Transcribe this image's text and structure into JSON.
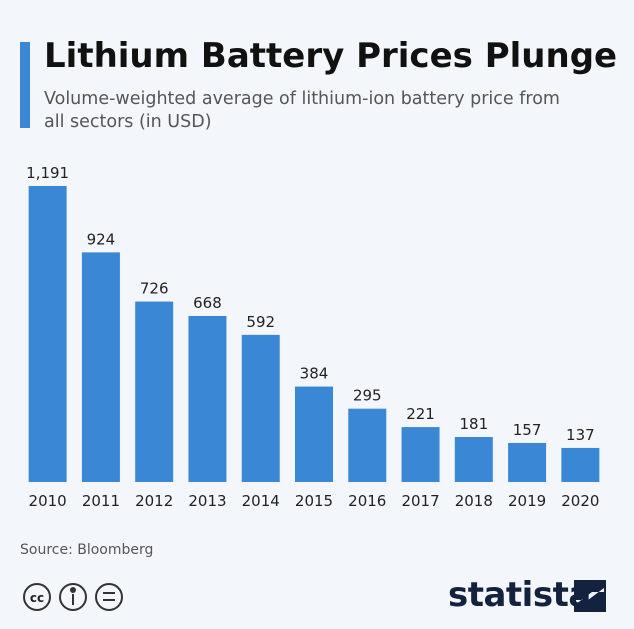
{
  "chart_data": {
    "type": "bar",
    "title": "Lithium Battery Prices Plunge",
    "subtitle": "Volume-weighted average of lithium-ion battery price from all sectors (in USD)",
    "categories": [
      "2010",
      "2011",
      "2012",
      "2013",
      "2014",
      "2015",
      "2016",
      "2017",
      "2018",
      "2019",
      "2020"
    ],
    "values": [
      1191,
      924,
      726,
      668,
      592,
      384,
      295,
      221,
      181,
      157,
      137
    ],
    "value_labels": [
      "1,191",
      "924",
      "726",
      "668",
      "592",
      "384",
      "295",
      "221",
      "181",
      "157",
      "137"
    ],
    "color": "#3a87d6",
    "source": "Source: Bloomberg",
    "brand": "statista"
  }
}
